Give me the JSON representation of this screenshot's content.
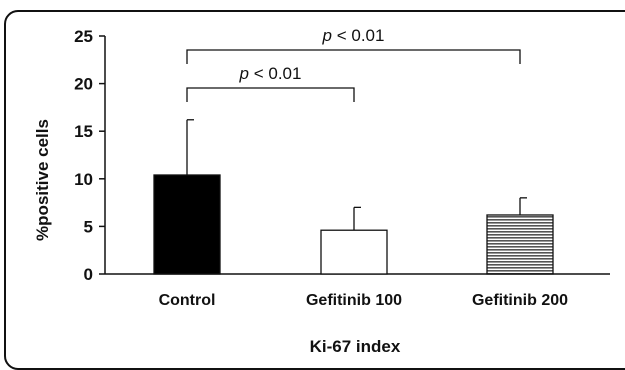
{
  "chart_data": {
    "type": "bar",
    "categories": [
      "Control",
      "Gefitinib 100",
      "Gefitinib 200"
    ],
    "values": [
      10.4,
      4.6,
      6.2
    ],
    "errors": [
      5.8,
      2.4,
      1.8
    ],
    "bar_styles": [
      "solid-black",
      "white",
      "horizontal-stripes"
    ],
    "bar_colors": [
      "#000000",
      "#ffffff",
      "#9a9a9a"
    ],
    "xlabel": "Ki-67 index",
    "ylabel": "%positive cells",
    "ylim": [
      0,
      25
    ],
    "yticks": [
      "0",
      "5",
      "10",
      "15",
      "20",
      "25"
    ],
    "grid": false,
    "annotations": [
      {
        "from": "Control",
        "to": "Gefitinib 100",
        "p_italic": "p",
        "text": " < 0.01"
      },
      {
        "from": "Control",
        "to": "Gefitinib 200",
        "p_italic": "p",
        "text": " < 0.01"
      }
    ]
  }
}
